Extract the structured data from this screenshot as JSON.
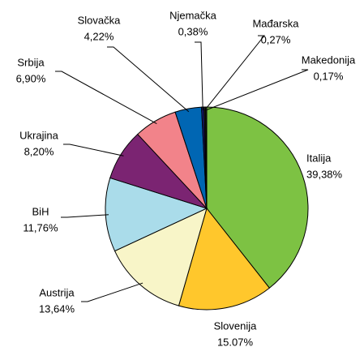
{
  "chart_data": {
    "type": "pie",
    "categories": [
      "Italija",
      "Slovenija",
      "Austrija",
      "BiH",
      "Ukrajina",
      "Srbija",
      "Slovačka",
      "Njemačka",
      "Mađarska",
      "Makedonija"
    ],
    "values": [
      39.38,
      15.07,
      13.64,
      11.76,
      8.2,
      6.9,
      4.22,
      0.38,
      0.27,
      0.17
    ],
    "value_labels": [
      "39,38%",
      "15.07%",
      "13,64%",
      "11,76%",
      "8,20%",
      "6,90%",
      "4,22%",
      "0,38%",
      "0,27%",
      "0,17%"
    ],
    "colors": [
      "#7dc243",
      "#ffc72c",
      "#f8f5c8",
      "#aadcea",
      "#7b2472",
      "#f2838a",
      "#0066b3",
      "#1a1a6e",
      "#222222",
      "#444444"
    ]
  }
}
